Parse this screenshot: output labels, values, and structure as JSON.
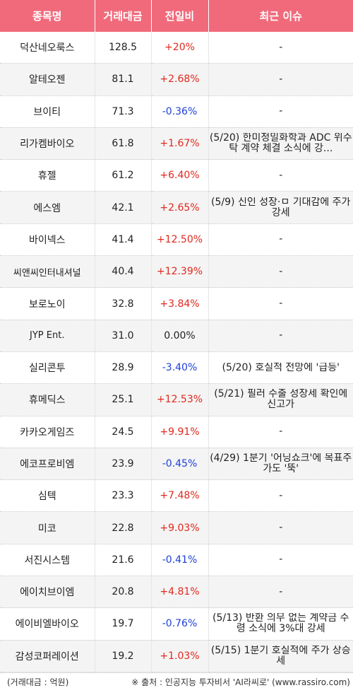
{
  "headers": {
    "name": "종목명",
    "volume": "거래대금",
    "change": "전일비",
    "issue": "최근 이슈"
  },
  "rows": [
    {
      "name": "덕산네오룩스",
      "volume": "128.5",
      "change": "+20%",
      "dir": "up",
      "issue": "-"
    },
    {
      "name": "알테오젠",
      "volume": "81.1",
      "change": "+2.68%",
      "dir": "up",
      "issue": "-"
    },
    {
      "name": "브이티",
      "volume": "71.3",
      "change": "-0.36%",
      "dir": "down",
      "issue": "-"
    },
    {
      "name": "리가켐바이오",
      "volume": "61.8",
      "change": "+1.67%",
      "dir": "up",
      "issue": "(5/20) 한미정밀화학과 ADC 위수탁 계약 체결 소식에 강..."
    },
    {
      "name": "휴젤",
      "volume": "61.2",
      "change": "+6.40%",
      "dir": "up",
      "issue": "-"
    },
    {
      "name": "에스엠",
      "volume": "42.1",
      "change": "+2.65%",
      "dir": "up",
      "issue": "(5/9) 신인 성장·ㅁ 기대감에 주가 강세"
    },
    {
      "name": "바이넥스",
      "volume": "41.4",
      "change": "+12.50%",
      "dir": "up",
      "issue": "-"
    },
    {
      "name": "씨앤씨인터내셔널",
      "volume": "40.4",
      "change": "+12.39%",
      "dir": "up",
      "issue": "-",
      "small": true
    },
    {
      "name": "보로노이",
      "volume": "32.8",
      "change": "+3.84%",
      "dir": "up",
      "issue": "-"
    },
    {
      "name": "JYP Ent.",
      "volume": "31.0",
      "change": "0.00%",
      "dir": "flat",
      "issue": "-",
      "small": true
    },
    {
      "name": "실리콘투",
      "volume": "28.9",
      "change": "-3.40%",
      "dir": "down",
      "issue": "(5/20) 호실적 전망에 '급등'"
    },
    {
      "name": "휴메딕스",
      "volume": "25.1",
      "change": "+12.53%",
      "dir": "up",
      "issue": "(5/21) 필러 수출 성장세 확인에 신고가"
    },
    {
      "name": "카카오게임즈",
      "volume": "24.5",
      "change": "+9.91%",
      "dir": "up",
      "issue": "-"
    },
    {
      "name": "에코프로비엠",
      "volume": "23.9",
      "change": "-0.45%",
      "dir": "down",
      "issue": "(4/29) 1분기 '어닝쇼크'에 목표주가도 '뚝'"
    },
    {
      "name": "심텍",
      "volume": "23.3",
      "change": "+7.48%",
      "dir": "up",
      "issue": "-"
    },
    {
      "name": "미코",
      "volume": "22.8",
      "change": "+9.03%",
      "dir": "up",
      "issue": "-"
    },
    {
      "name": "서진시스템",
      "volume": "21.6",
      "change": "-0.41%",
      "dir": "down",
      "issue": "-"
    },
    {
      "name": "에이치브이엠",
      "volume": "20.8",
      "change": "+4.81%",
      "dir": "up",
      "issue": "-"
    },
    {
      "name": "에이비엘바이오",
      "volume": "19.7",
      "change": "-0.76%",
      "dir": "down",
      "issue": "(5/13) 반환 의무 없는 계약금 수령 소식에 3%대 강세"
    },
    {
      "name": "감성코퍼레이션",
      "volume": "19.2",
      "change": "+1.03%",
      "dir": "up",
      "issue": "(5/15) 1분기 호실적에 주가 상승세"
    }
  ],
  "footer": {
    "unit": "(거래대금 : 억원)",
    "source": "※ 출처 : 인공지능 투자비서 'AI라씨로' (www.rassiro.com)"
  },
  "colors": {
    "header_bg": "#f06a7b",
    "up": "#e0281e",
    "down": "#1d3fd8"
  }
}
